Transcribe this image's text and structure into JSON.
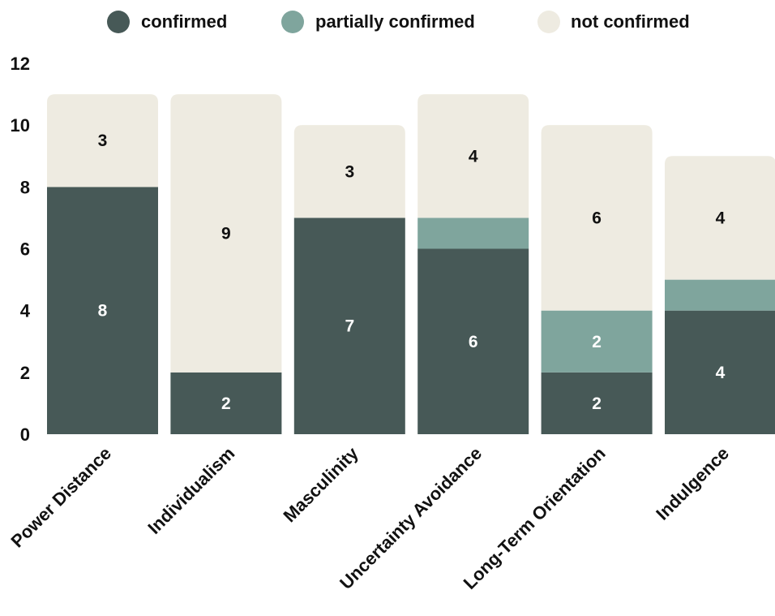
{
  "chart_data": {
    "type": "bar",
    "stacked": true,
    "categories": [
      "Power Distance",
      "Individualism",
      "Masculinity",
      "Uncertainty Avoidance",
      "Long-Term Orientation",
      "Indulgence"
    ],
    "series": [
      {
        "name": "confirmed",
        "color": "#475957",
        "label_color": "#ffffff",
        "values": [
          8,
          2,
          7,
          6,
          2,
          4
        ],
        "labels": [
          "8",
          "2",
          "7",
          "6",
          "2",
          "4"
        ]
      },
      {
        "name": "partially confirmed",
        "color": "#7fa59d",
        "label_color": "#ffffff",
        "values": [
          0,
          0,
          0,
          1,
          2,
          1
        ],
        "labels": [
          "",
          "",
          "",
          "",
          "2",
          ""
        ]
      },
      {
        "name": "not confirmed",
        "color": "#eeebe1",
        "label_color": "#111111",
        "values": [
          3,
          9,
          3,
          4,
          6,
          4
        ],
        "labels": [
          "3",
          "9",
          "3",
          "4",
          "6",
          "4"
        ]
      }
    ],
    "ylim": [
      0,
      12
    ],
    "yticks": [
      "0",
      "2",
      "4",
      "6",
      "8",
      "10",
      "12"
    ],
    "xlabel": "",
    "ylabel": "",
    "legend": "top",
    "grid": false
  }
}
